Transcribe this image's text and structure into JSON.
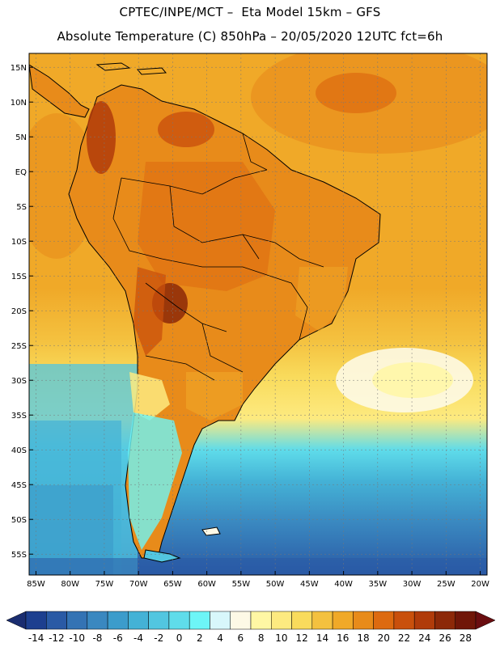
{
  "header": {
    "line1": "CPTEC/INPE/MCT –  Eta Model 15km – GFS",
    "line2": "Absolute Temperature (C) 850hPa – 20/05/2020 12UTC fct=6h"
  },
  "map": {
    "lon_range": [
      -86,
      -19
    ],
    "lat_range": [
      -58,
      17
    ],
    "lat_labels": [
      "15N",
      "10N",
      "5N",
      "EQ",
      "5S",
      "10S",
      "15S",
      "20S",
      "25S",
      "30S",
      "35S",
      "40S",
      "45S",
      "50S",
      "55S"
    ],
    "lat_values": [
      15,
      10,
      5,
      0,
      -5,
      -10,
      -15,
      -20,
      -25,
      -30,
      -35,
      -40,
      -45,
      -50,
      -55
    ],
    "lon_labels": [
      "85W",
      "80W",
      "75W",
      "70W",
      "65W",
      "60W",
      "55W",
      "50W",
      "45W",
      "40W",
      "35W",
      "30W",
      "25W",
      "20W"
    ],
    "lon_values": [
      -85,
      -80,
      -75,
      -70,
      -65,
      -60,
      -55,
      -50,
      -45,
      -40,
      -35,
      -30,
      -25,
      -20
    ],
    "grid": true
  },
  "colorbar": {
    "labels": [
      "-14",
      "-12",
      "-10",
      "-8",
      "-6",
      "-4",
      "-2",
      "0",
      "2",
      "4",
      "6",
      "8",
      "10",
      "12",
      "14",
      "16",
      "18",
      "20",
      "22",
      "24",
      "26",
      "28"
    ],
    "colors": [
      "#1d3f8f",
      "#2a5aa5",
      "#3473b4",
      "#3a88c0",
      "#3c9ccb",
      "#44b2d6",
      "#52c6e0",
      "#5fdcea",
      "#6df5f7",
      "#d8f7fb",
      "#fdf9e6",
      "#fff7a4",
      "#fdea80",
      "#f9db5c",
      "#f4c13f",
      "#f0a928",
      "#e88b1a",
      "#dd6a10",
      "#c9500c",
      "#b03b0a",
      "#8c2808",
      "#701608"
    ],
    "left_arrow_color": "#1a2d70",
    "right_arrow_color": "#6a0d10"
  }
}
